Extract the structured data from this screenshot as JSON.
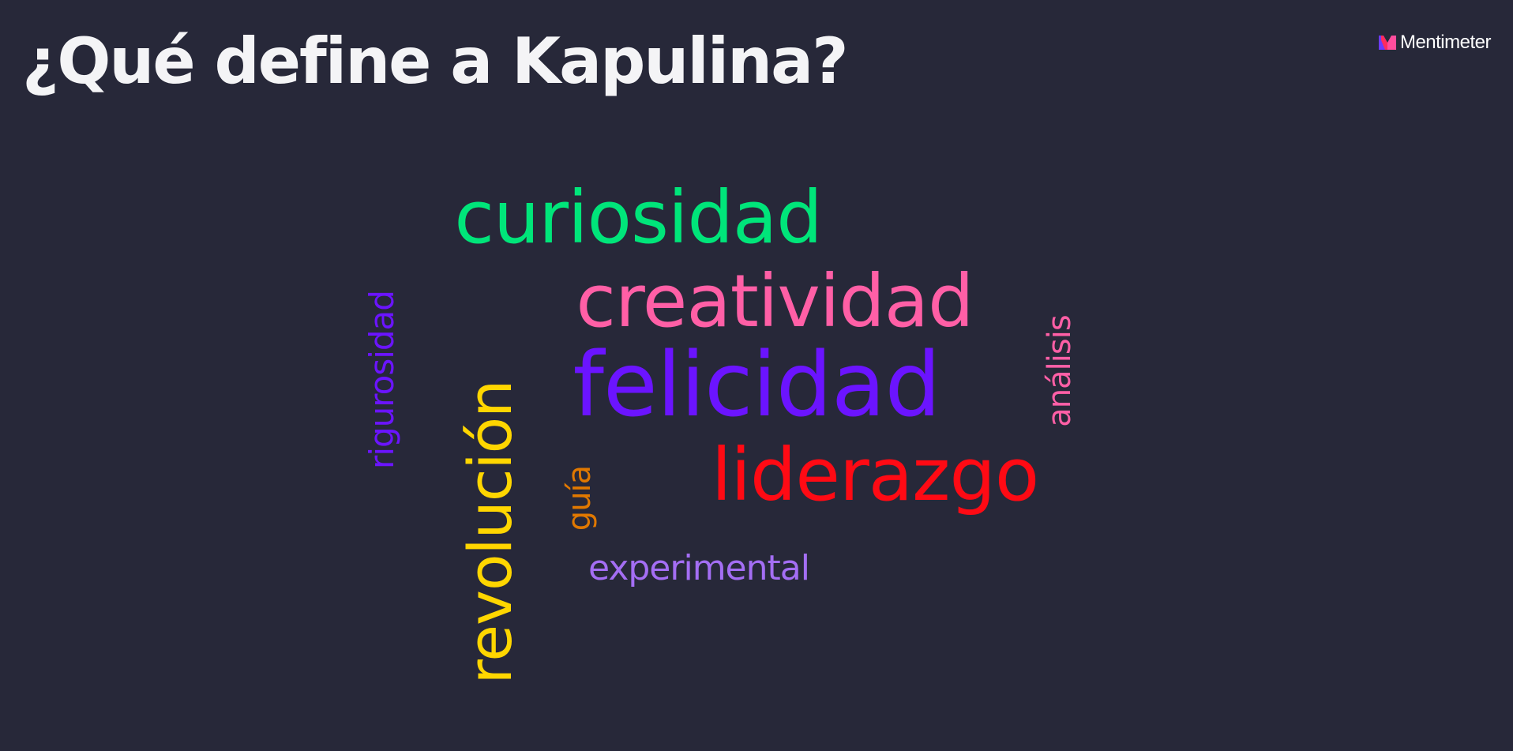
{
  "slide": {
    "title": "¿Qué define a Kapulina?",
    "background_color": "#272839"
  },
  "brand": {
    "name": "Mentimeter",
    "logo_icon": "mentimeter-logo-icon"
  },
  "word_cloud": {
    "words": [
      {
        "text": "curiosidad",
        "color": "#00e57a",
        "orientation": "horizontal"
      },
      {
        "text": "creatividad",
        "color": "#ff5fa6",
        "orientation": "horizontal"
      },
      {
        "text": "felicidad",
        "color": "#6b14ff",
        "orientation": "horizontal"
      },
      {
        "text": "liderazgo",
        "color": "#ff0a14",
        "orientation": "horizontal"
      },
      {
        "text": "experimental",
        "color": "#a46ef4",
        "orientation": "horizontal"
      },
      {
        "text": "revolución",
        "color": "#ffd600",
        "orientation": "vertical"
      },
      {
        "text": "rigurosidad",
        "color": "#6b14ff",
        "orientation": "vertical"
      },
      {
        "text": "guía",
        "color": "#e07800",
        "orientation": "vertical"
      },
      {
        "text": "análisis",
        "color": "#ff5fa6",
        "orientation": "vertical"
      }
    ]
  }
}
